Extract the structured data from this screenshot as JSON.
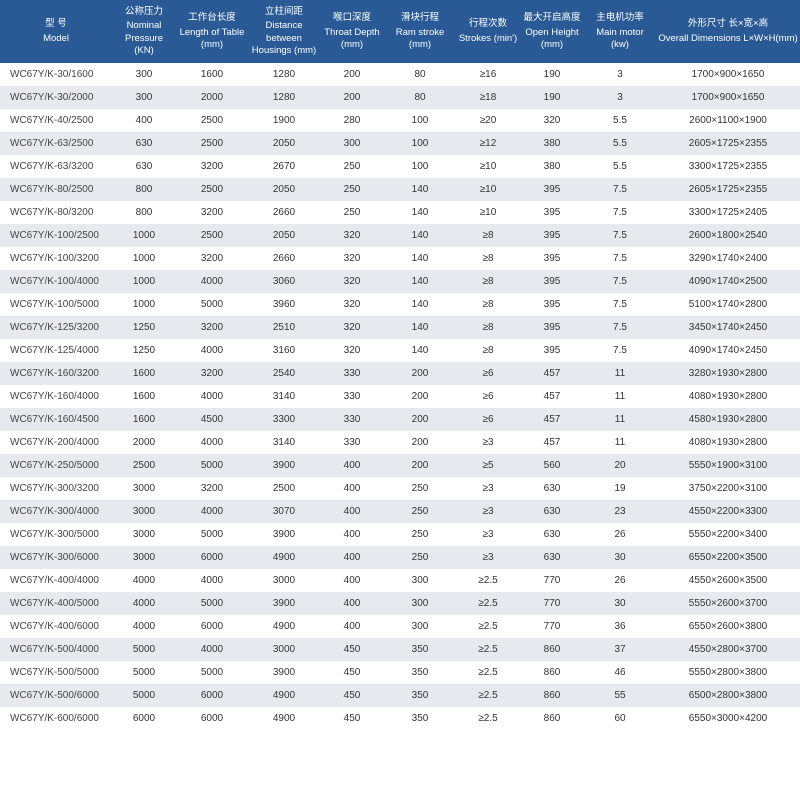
{
  "table": {
    "header_bg": "#295a96",
    "header_fg": "#ffffff",
    "row_bg": "#ffffff",
    "row_alt_bg": "#e6eaee",
    "font_family": "Arial",
    "header_fontsize": 9.5,
    "cell_fontsize": 10,
    "columns": [
      {
        "cn": "型 号",
        "en": "Model",
        "width": "14%"
      },
      {
        "cn": "公称压力",
        "en": "Nominal Pressure (KN)",
        "width": "8%"
      },
      {
        "cn": "工作台长度",
        "en": "Length of Table (mm)",
        "width": "9%"
      },
      {
        "cn": "立柱间距",
        "en": "Distance between Housings (mm)",
        "width": "9%"
      },
      {
        "cn": "喉口深度",
        "en": "Throat Depth (mm)",
        "width": "8%"
      },
      {
        "cn": "滑块行程",
        "en": "Ram stroke (mm)",
        "width": "9%"
      },
      {
        "cn": "行程次数",
        "en": "Strokes (min')",
        "width": "8%"
      },
      {
        "cn": "最大开启高度",
        "en": "Open Height (mm)",
        "width": "8%"
      },
      {
        "cn": "主电机功率",
        "en": "Main motor (kw)",
        "width": "9%"
      },
      {
        "cn": "外形尺寸 长×宽×高",
        "en": "Overall Dimensions L×W×H(mm)",
        "width": "18%"
      }
    ],
    "rows": [
      [
        "WC67Y/K-30/1600",
        "300",
        "1600",
        "1280",
        "200",
        "80",
        "≥16",
        "190",
        "3",
        "1700×900×1650"
      ],
      [
        "WC67Y/K-30/2000",
        "300",
        "2000",
        "1280",
        "200",
        "80",
        "≥18",
        "190",
        "3",
        "1700×900×1650"
      ],
      [
        "WC67Y/K-40/2500",
        "400",
        "2500",
        "1900",
        "280",
        "100",
        "≥20",
        "320",
        "5.5",
        "2600×1100×1900"
      ],
      [
        "WC67Y/K-63/2500",
        "630",
        "2500",
        "2050",
        "300",
        "100",
        "≥12",
        "380",
        "5.5",
        "2605×1725×2355"
      ],
      [
        "WC67Y/K-63/3200",
        "630",
        "3200",
        "2670",
        "250",
        "100",
        "≥10",
        "380",
        "5.5",
        "3300×1725×2355"
      ],
      [
        "WC67Y/K-80/2500",
        "800",
        "2500",
        "2050",
        "250",
        "140",
        "≥10",
        "395",
        "7.5",
        "2605×1725×2355"
      ],
      [
        "WC67Y/K-80/3200",
        "800",
        "3200",
        "2660",
        "250",
        "140",
        "≥10",
        "395",
        "7.5",
        "3300×1725×2405"
      ],
      [
        "WC67Y/K-100/2500",
        "1000",
        "2500",
        "2050",
        "320",
        "140",
        "≥8",
        "395",
        "7.5",
        "2600×1800×2540"
      ],
      [
        "WC67Y/K-100/3200",
        "1000",
        "3200",
        "2660",
        "320",
        "140",
        "≥8",
        "395",
        "7.5",
        "3290×1740×2400"
      ],
      [
        "WC67Y/K-100/4000",
        "1000",
        "4000",
        "3060",
        "320",
        "140",
        "≥8",
        "395",
        "7.5",
        "4090×1740×2500"
      ],
      [
        "WC67Y/K-100/5000",
        "1000",
        "5000",
        "3960",
        "320",
        "140",
        "≥8",
        "395",
        "7.5",
        "5100×1740×2800"
      ],
      [
        "WC67Y/K-125/3200",
        "1250",
        "3200",
        "2510",
        "320",
        "140",
        "≥8",
        "395",
        "7.5",
        "3450×1740×2450"
      ],
      [
        "WC67Y/K-125/4000",
        "1250",
        "4000",
        "3160",
        "320",
        "140",
        "≥8",
        "395",
        "7.5",
        "4090×1740×2450"
      ],
      [
        "WC67Y/K-160/3200",
        "1600",
        "3200",
        "2540",
        "330",
        "200",
        "≥6",
        "457",
        "11",
        "3280×1930×2800"
      ],
      [
        "WC67Y/K-160/4000",
        "1600",
        "4000",
        "3140",
        "330",
        "200",
        "≥6",
        "457",
        "11",
        "4080×1930×2800"
      ],
      [
        "WC67Y/K-160/4500",
        "1600",
        "4500",
        "3300",
        "330",
        "200",
        "≥6",
        "457",
        "11",
        "4580×1930×2800"
      ],
      [
        "WC67Y/K-200/4000",
        "2000",
        "4000",
        "3140",
        "330",
        "200",
        "≥3",
        "457",
        "11",
        "4080×1930×2800"
      ],
      [
        "WC67Y/K-250/5000",
        "2500",
        "5000",
        "3900",
        "400",
        "200",
        "≥5",
        "560",
        "20",
        "5550×1900×3100"
      ],
      [
        "WC67Y/K-300/3200",
        "3000",
        "3200",
        "2500",
        "400",
        "250",
        "≥3",
        "630",
        "19",
        "3750×2200×3100"
      ],
      [
        "WC67Y/K-300/4000",
        "3000",
        "4000",
        "3070",
        "400",
        "250",
        "≥3",
        "630",
        "23",
        "4550×2200×3300"
      ],
      [
        "WC67Y/K-300/5000",
        "3000",
        "5000",
        "3900",
        "400",
        "250",
        "≥3",
        "630",
        "26",
        "5550×2200×3400"
      ],
      [
        "WC67Y/K-300/6000",
        "3000",
        "6000",
        "4900",
        "400",
        "250",
        "≥3",
        "630",
        "30",
        "6550×2200×3500"
      ],
      [
        "WC67Y/K-400/4000",
        "4000",
        "4000",
        "3000",
        "400",
        "300",
        "≥2.5",
        "770",
        "26",
        "4550×2600×3500"
      ],
      [
        "WC67Y/K-400/5000",
        "4000",
        "5000",
        "3900",
        "400",
        "300",
        "≥2.5",
        "770",
        "30",
        "5550×2600×3700"
      ],
      [
        "WC67Y/K-400/6000",
        "4000",
        "6000",
        "4900",
        "400",
        "300",
        "≥2.5",
        "770",
        "36",
        "6550×2600×3800"
      ],
      [
        "WC67Y/K-500/4000",
        "5000",
        "4000",
        "3000",
        "450",
        "350",
        "≥2.5",
        "860",
        "37",
        "4550×2800×3700"
      ],
      [
        "WC67Y/K-500/5000",
        "5000",
        "5000",
        "3900",
        "450",
        "350",
        "≥2.5",
        "860",
        "46",
        "5550×2800×3800"
      ],
      [
        "WC67Y/K-500/6000",
        "5000",
        "6000",
        "4900",
        "450",
        "350",
        "≥2.5",
        "860",
        "55",
        "6500×2800×3800"
      ],
      [
        "WC67Y/K-600/6000",
        "6000",
        "6000",
        "4900",
        "450",
        "350",
        "≥2.5",
        "860",
        "60",
        "6550×3000×4200"
      ]
    ]
  }
}
